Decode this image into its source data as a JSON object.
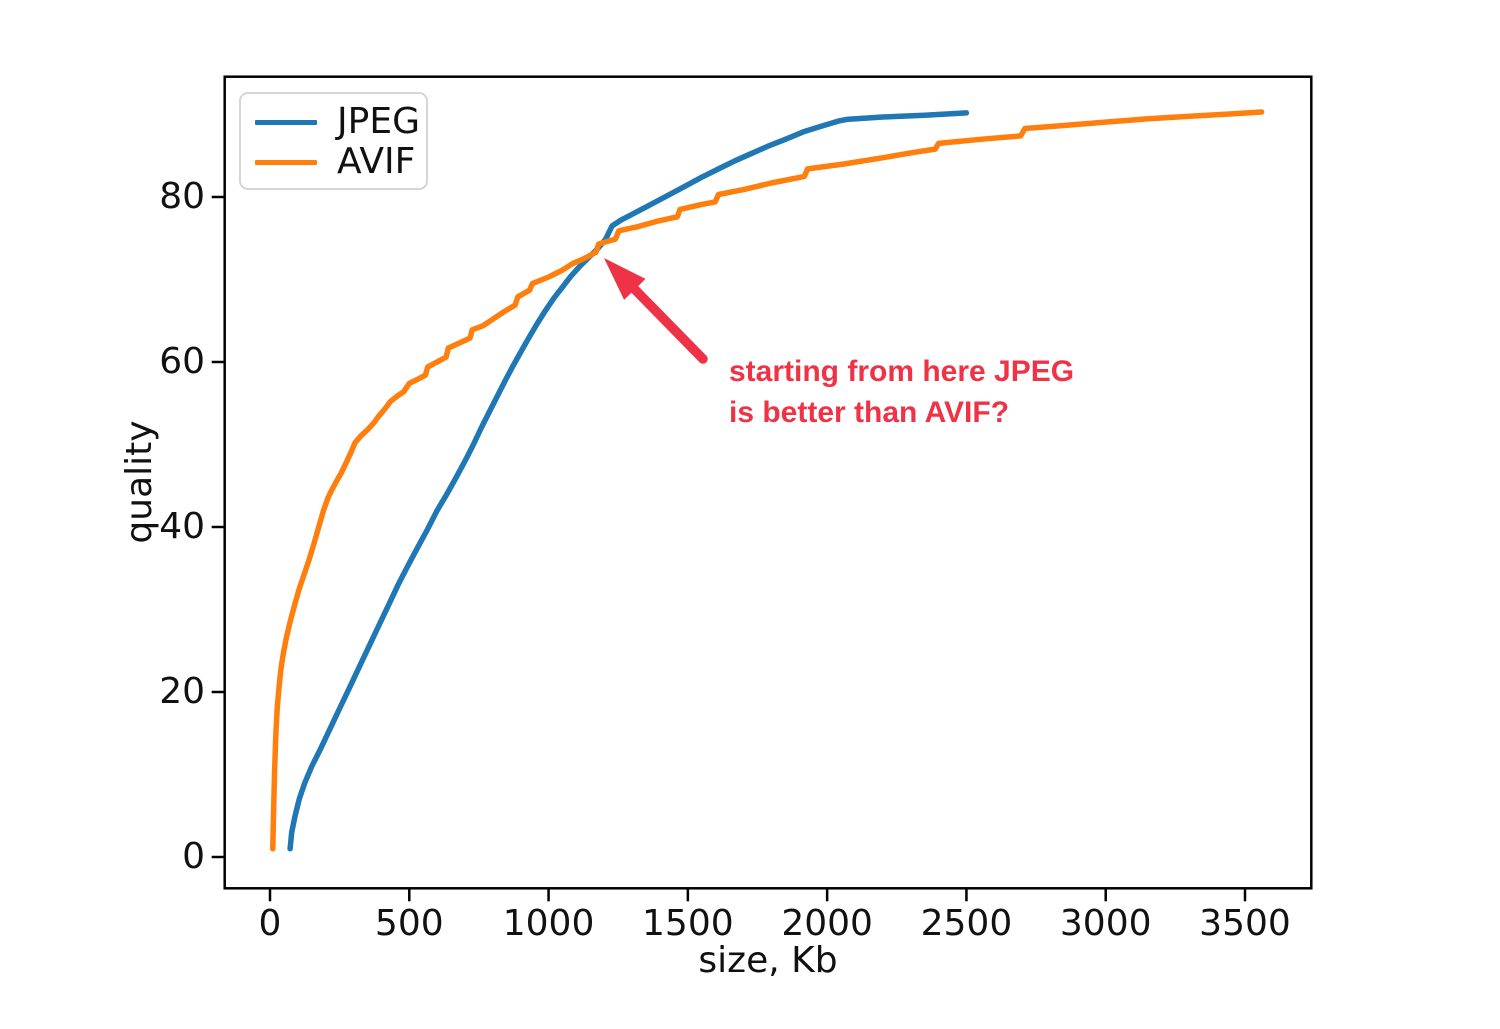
{
  "figure": {
    "background": "#ffffff",
    "text_color": "#111111",
    "spine_color": "#000000",
    "annotation": {
      "line1": "starting from here JPEG",
      "line2": "is better than AVIF?",
      "color": "#ef3347"
    }
  },
  "chart_data": {
    "type": "line",
    "title": "",
    "xlabel": "size, Kb",
    "ylabel": "quality",
    "xlim": [
      -165,
      3741
    ],
    "ylim": [
      -3.8,
      94.6
    ],
    "x_ticks": [
      0,
      500,
      1000,
      1500,
      2000,
      2500,
      3000,
      3500
    ],
    "y_ticks": [
      0,
      20,
      40,
      60,
      80
    ],
    "grid": false,
    "legend_position": "upper left",
    "series": [
      {
        "name": "JPEG",
        "color": "#1f77b4",
        "points": [
          [
            72,
            1
          ],
          [
            78,
            3
          ],
          [
            90,
            5
          ],
          [
            105,
            7
          ],
          [
            125,
            9
          ],
          [
            150,
            11
          ],
          [
            180,
            13
          ],
          [
            215,
            15.5
          ],
          [
            250,
            18
          ],
          [
            285,
            20.5
          ],
          [
            320,
            23
          ],
          [
            355,
            25.5
          ],
          [
            390,
            28
          ],
          [
            425,
            30.5
          ],
          [
            460,
            33
          ],
          [
            495,
            35.3
          ],
          [
            530,
            37.5
          ],
          [
            565,
            39.7
          ],
          [
            600,
            42
          ],
          [
            635,
            44
          ],
          [
            668,
            46
          ],
          [
            700,
            48
          ],
          [
            730,
            50
          ],
          [
            758,
            52
          ],
          [
            788,
            54
          ],
          [
            818,
            56
          ],
          [
            845,
            57.8
          ],
          [
            872,
            59.5
          ],
          [
            900,
            61.2
          ],
          [
            930,
            63
          ],
          [
            958,
            64.6
          ],
          [
            988,
            66.2
          ],
          [
            1018,
            67.7
          ],
          [
            1048,
            69
          ],
          [
            1080,
            70.4
          ],
          [
            1112,
            71.6
          ],
          [
            1145,
            72.7
          ],
          [
            1178,
            73.8
          ],
          [
            1205,
            74.9
          ],
          [
            1218,
            75.8
          ],
          [
            1228,
            76.5
          ],
          [
            1260,
            77.2
          ],
          [
            1300,
            77.9
          ],
          [
            1345,
            78.7
          ],
          [
            1390,
            79.5
          ],
          [
            1440,
            80.4
          ],
          [
            1495,
            81.4
          ],
          [
            1550,
            82.4
          ],
          [
            1610,
            83.4
          ],
          [
            1670,
            84.4
          ],
          [
            1730,
            85.3
          ],
          [
            1790,
            86.2
          ],
          [
            1850,
            87
          ],
          [
            1915,
            87.9
          ],
          [
            1980,
            88.6
          ],
          [
            2040,
            89.2
          ],
          [
            2070,
            89.4
          ],
          [
            2200,
            89.7
          ],
          [
            2350,
            89.9
          ],
          [
            2500,
            90.2
          ]
        ]
      },
      {
        "name": "AVIF",
        "color": "#ff7f0e",
        "points": [
          [
            10,
            1
          ],
          [
            12,
            4
          ],
          [
            14,
            7
          ],
          [
            16,
            10
          ],
          [
            19,
            13
          ],
          [
            22,
            15.5
          ],
          [
            26,
            18
          ],
          [
            31,
            20
          ],
          [
            38,
            22.5
          ],
          [
            47,
            24.5
          ],
          [
            58,
            26.5
          ],
          [
            72,
            28.5
          ],
          [
            88,
            30.5
          ],
          [
            105,
            32.5
          ],
          [
            122,
            34.2
          ],
          [
            140,
            36
          ],
          [
            158,
            38
          ],
          [
            175,
            40
          ],
          [
            192,
            42
          ],
          [
            208,
            43.5
          ],
          [
            222,
            44.5
          ],
          [
            238,
            45.5
          ],
          [
            255,
            46.5
          ],
          [
            272,
            47.7
          ],
          [
            290,
            49
          ],
          [
            305,
            50.2
          ],
          [
            325,
            51
          ],
          [
            350,
            51.8
          ],
          [
            372,
            52.6
          ],
          [
            390,
            53.4
          ],
          [
            412,
            54.3
          ],
          [
            432,
            55.2
          ],
          [
            458,
            55.9
          ],
          [
            480,
            56.4
          ],
          [
            500,
            57.4
          ],
          [
            530,
            57.9
          ],
          [
            558,
            58.4
          ],
          [
            566,
            59.4
          ],
          [
            600,
            60
          ],
          [
            632,
            60.6
          ],
          [
            640,
            61.7
          ],
          [
            680,
            62.3
          ],
          [
            718,
            62.9
          ],
          [
            726,
            63.9
          ],
          [
            765,
            64.4
          ],
          [
            800,
            65.2
          ],
          [
            840,
            66.1
          ],
          [
            880,
            66.9
          ],
          [
            890,
            67.9
          ],
          [
            932,
            68.7
          ],
          [
            942,
            69.5
          ],
          [
            1000,
            70.3
          ],
          [
            1048,
            71.1
          ],
          [
            1085,
            71.9
          ],
          [
            1125,
            72.5
          ],
          [
            1170,
            73.3
          ],
          [
            1180,
            74.3
          ],
          [
            1240,
            74.9
          ],
          [
            1252,
            75.9
          ],
          [
            1320,
            76.4
          ],
          [
            1395,
            77.1
          ],
          [
            1462,
            77.6
          ],
          [
            1472,
            78.5
          ],
          [
            1550,
            79.1
          ],
          [
            1598,
            79.4
          ],
          [
            1610,
            80.3
          ],
          [
            1700,
            80.9
          ],
          [
            1800,
            81.7
          ],
          [
            1918,
            82.5
          ],
          [
            1930,
            83.4
          ],
          [
            2060,
            84
          ],
          [
            2190,
            84.7
          ],
          [
            2310,
            85.4
          ],
          [
            2388,
            85.8
          ],
          [
            2400,
            86.5
          ],
          [
            2550,
            87
          ],
          [
            2695,
            87.4
          ],
          [
            2710,
            88.3
          ],
          [
            2860,
            88.7
          ],
          [
            3010,
            89.1
          ],
          [
            3160,
            89.5
          ],
          [
            3310,
            89.8
          ],
          [
            3460,
            90.1
          ],
          [
            3560,
            90.3
          ]
        ]
      }
    ],
    "annotation": {
      "text": "starting from here JPEG is better than AVIF?",
      "color": "#ef3347",
      "arrow_points_to": [
        1195,
        73.5
      ],
      "text_position": [
        1645,
        59
      ]
    }
  }
}
